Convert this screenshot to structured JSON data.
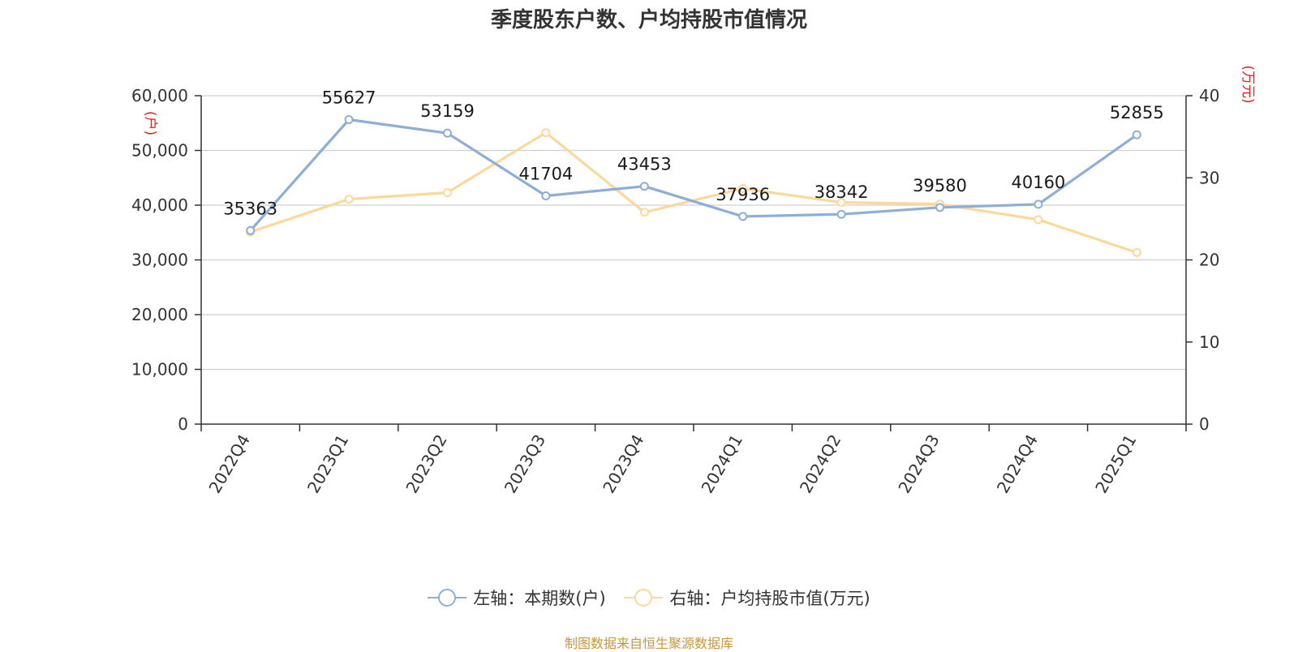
{
  "chart_data": {
    "type": "line",
    "title": "季度股东户数、户均持股市值情况",
    "categories": [
      "2022Q4",
      "2023Q1",
      "2023Q2",
      "2023Q3",
      "2023Q4",
      "2024Q1",
      "2024Q2",
      "2024Q3",
      "2024Q4",
      "2025Q1"
    ],
    "left_axis": {
      "unit": "(户)",
      "ylim": [
        0,
        60000
      ],
      "ticks": [
        "0",
        "10,000",
        "20,000",
        "30,000",
        "40,000",
        "50,000",
        "60,000"
      ],
      "tick_values": [
        0,
        10000,
        20000,
        30000,
        40000,
        50000,
        60000
      ]
    },
    "right_axis": {
      "unit": "(万元)",
      "ylim": [
        0,
        40
      ],
      "ticks": [
        "0",
        "10",
        "20",
        "30",
        "40"
      ],
      "tick_values": [
        0,
        10,
        20,
        30,
        40
      ]
    },
    "series": [
      {
        "name": "左轴：本期数(户)",
        "axis": "left",
        "color": "#8eaed8",
        "values": [
          35363,
          55627,
          53159,
          41704,
          43453,
          37936,
          38342,
          39580,
          40160,
          52855
        ],
        "labels": [
          "35363",
          "55627",
          "53159",
          "41704",
          "43453",
          "37936",
          "38342",
          "39580",
          "40160",
          "52855"
        ]
      },
      {
        "name": "右轴：户均持股市值(万元)",
        "axis": "right",
        "color": "#fcd89a",
        "values": [
          23.4,
          27.4,
          28.2,
          35.5,
          25.8,
          28.7,
          27.0,
          26.8,
          24.9,
          20.9
        ]
      }
    ],
    "grid": true,
    "legend_position": "bottom"
  },
  "source_note": "制图数据来自恒生聚源数据库"
}
